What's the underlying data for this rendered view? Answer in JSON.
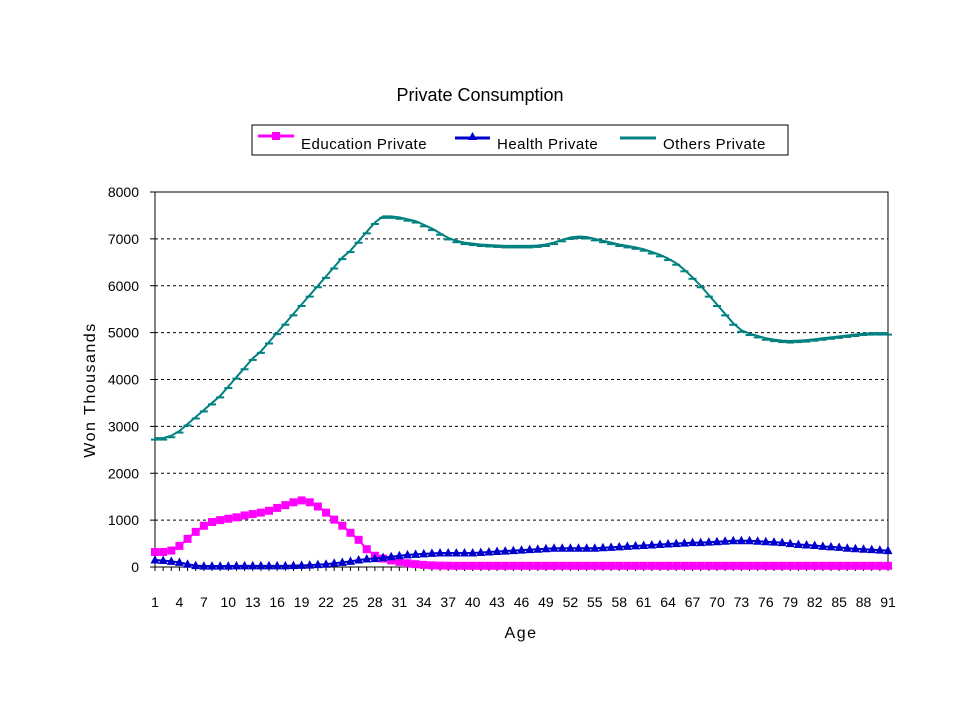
{
  "chart_data": {
    "type": "line",
    "title": "Private Consumption",
    "xlabel": "Age",
    "ylabel": "Won Thousands",
    "ylim": [
      0,
      8000
    ],
    "yticks": [
      0,
      1000,
      2000,
      3000,
      4000,
      5000,
      6000,
      7000,
      8000
    ],
    "xlim": [
      1,
      91
    ],
    "xtick_labels": [
      "1",
      "4",
      "7",
      "10",
      "13",
      "16",
      "19",
      "22",
      "25",
      "28",
      "31",
      "34",
      "37",
      "40",
      "43",
      "46",
      "49",
      "52",
      "55",
      "58",
      "61",
      "64",
      "67",
      "70",
      "73",
      "76",
      "79",
      "82",
      "85",
      "88",
      "91"
    ],
    "grid": "horizontal dashed",
    "legend": "top",
    "x": [
      1,
      2,
      3,
      4,
      5,
      6,
      7,
      8,
      9,
      10,
      11,
      12,
      13,
      14,
      15,
      16,
      17,
      18,
      19,
      20,
      21,
      22,
      23,
      24,
      25,
      26,
      27,
      28,
      29,
      30,
      31,
      32,
      33,
      34,
      35,
      36,
      37,
      38,
      39,
      40,
      41,
      42,
      43,
      44,
      45,
      46,
      47,
      48,
      49,
      50,
      51,
      52,
      53,
      54,
      55,
      56,
      57,
      58,
      59,
      60,
      61,
      62,
      63,
      64,
      65,
      66,
      67,
      68,
      69,
      70,
      71,
      72,
      73,
      74,
      75,
      76,
      77,
      78,
      79,
      80,
      81,
      82,
      83,
      84,
      85,
      86,
      87,
      88,
      89,
      90,
      91
    ],
    "series": [
      {
        "name": "Education Private",
        "color": "#ff00ff",
        "marker": "square",
        "values": [
          320,
          320,
          350,
          450,
          600,
          750,
          880,
          960,
          1000,
          1030,
          1060,
          1100,
          1130,
          1160,
          1200,
          1260,
          1320,
          1380,
          1420,
          1380,
          1290,
          1160,
          1010,
          880,
          730,
          580,
          380,
          240,
          180,
          140,
          110,
          80,
          60,
          45,
          35,
          30,
          28,
          25,
          25,
          25,
          25,
          25,
          25,
          25,
          25,
          25,
          25,
          25,
          25,
          25,
          25,
          25,
          25,
          25,
          25,
          25,
          25,
          25,
          25,
          25,
          25,
          25,
          25,
          25,
          25,
          25,
          25,
          25,
          25,
          25,
          25,
          25,
          25,
          25,
          25,
          25,
          25,
          25,
          25,
          25,
          25,
          25,
          25,
          25,
          25,
          25,
          25,
          25,
          25,
          25,
          25
        ]
      },
      {
        "name": "Health Private",
        "color": "#0000cc",
        "marker": "triangle",
        "values": [
          150,
          140,
          120,
          100,
          60,
          30,
          20,
          20,
          20,
          20,
          25,
          25,
          25,
          25,
          25,
          25,
          25,
          30,
          35,
          40,
          50,
          60,
          80,
          100,
          120,
          150,
          170,
          180,
          200,
          220,
          240,
          260,
          270,
          280,
          290,
          300,
          300,
          300,
          300,
          300,
          310,
          320,
          330,
          340,
          350,
          360,
          370,
          380,
          390,
          400,
          400,
          400,
          400,
          400,
          400,
          410,
          420,
          430,
          440,
          450,
          460,
          470,
          480,
          490,
          500,
          510,
          520,
          520,
          530,
          540,
          550,
          560,
          560,
          560,
          550,
          540,
          530,
          520,
          500,
          480,
          470,
          460,
          440,
          430,
          420,
          400,
          390,
          380,
          370,
          360,
          350
        ]
      },
      {
        "name": "Others Private",
        "color": "#008080",
        "marker": "dash",
        "values": [
          2750,
          2750,
          2800,
          2900,
          3050,
          3200,
          3350,
          3500,
          3650,
          3850,
          4050,
          4250,
          4450,
          4600,
          4800,
          5000,
          5200,
          5400,
          5600,
          5800,
          6000,
          6200,
          6400,
          6600,
          6750,
          6950,
          7150,
          7350,
          7480,
          7480,
          7460,
          7420,
          7380,
          7300,
          7220,
          7120,
          7020,
          6960,
          6920,
          6900,
          6880,
          6870,
          6860,
          6850,
          6850,
          6850,
          6850,
          6860,
          6880,
          6920,
          6980,
          7030,
          7050,
          7040,
          7000,
          6960,
          6920,
          6880,
          6850,
          6820,
          6780,
          6720,
          6660,
          6580,
          6480,
          6340,
          6180,
          6000,
          5800,
          5600,
          5400,
          5200,
          5050,
          4980,
          4930,
          4880,
          4850,
          4830,
          4820,
          4830,
          4840,
          4860,
          4880,
          4900,
          4920,
          4940,
          4960,
          4980,
          4990,
          4990,
          4990
        ]
      }
    ]
  }
}
